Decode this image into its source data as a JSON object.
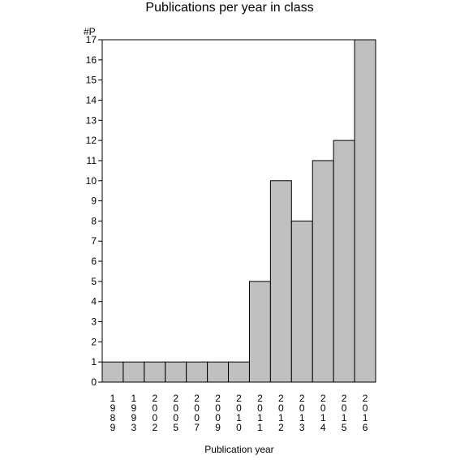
{
  "chart_data": {
    "type": "bar",
    "title": "Publications per year in class",
    "ylabel": "#P",
    "xlabel": "Publication year",
    "categories": [
      "1989",
      "1993",
      "2002",
      "2005",
      "2007",
      "2009",
      "2010",
      "2011",
      "2012",
      "2013",
      "2014",
      "2015",
      "2016"
    ],
    "values": [
      1,
      1,
      1,
      1,
      1,
      1,
      1,
      5,
      10,
      8,
      11,
      12,
      17
    ],
    "ylim": [
      0,
      17
    ],
    "yticks": [
      0,
      1,
      2,
      3,
      4,
      5,
      6,
      7,
      8,
      9,
      10,
      11,
      12,
      13,
      14,
      15,
      16,
      17
    ],
    "grid": false,
    "legend": "none",
    "colors": {
      "bar_fill": "#c0c0c0",
      "bar_stroke": "#000000",
      "axis": "#000000",
      "background": "#ffffff"
    }
  }
}
